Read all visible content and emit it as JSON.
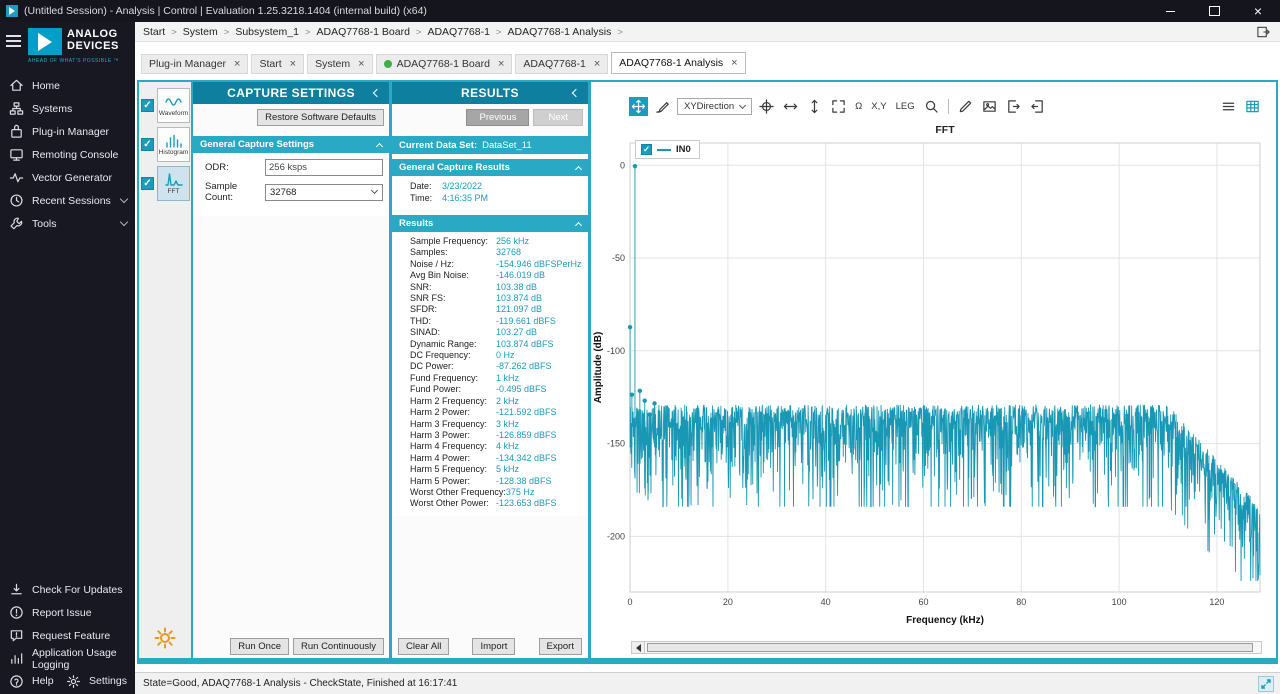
{
  "window": {
    "title": "(Untitled Session) - Analysis | Control | Evaluation 1.25.3218.1404 (internal build) (x64)"
  },
  "sidebar": {
    "logo": {
      "brand_line1": "ANALOG",
      "brand_line2": "DEVICES",
      "tagline": "AHEAD OF WHAT'S POSSIBLE ™"
    },
    "items": [
      {
        "label": "Home",
        "icon": "home-icon"
      },
      {
        "label": "Systems",
        "icon": "systems-icon"
      },
      {
        "label": "Plug-in Manager",
        "icon": "plugin-icon"
      },
      {
        "label": "Remoting Console",
        "icon": "console-icon"
      },
      {
        "label": "Vector Generator",
        "icon": "vector-icon"
      },
      {
        "label": "Recent Sessions",
        "icon": "sessions-icon",
        "chevron": true
      },
      {
        "label": "Tools",
        "icon": "tools-icon",
        "chevron": true
      }
    ],
    "bottom_items": [
      {
        "label": "Check For Updates",
        "icon": "download-icon"
      },
      {
        "label": "Report Issue",
        "icon": "report-issue-icon"
      },
      {
        "label": "Request Feature",
        "icon": "request-feature-icon"
      },
      {
        "label": "Application Usage Logging",
        "icon": "usage-logging-icon"
      }
    ],
    "help_label": "Help",
    "settings_label": "Settings"
  },
  "breadcrumb": {
    "items": [
      "Start",
      "System",
      "Subsystem_1",
      "ADAQ7768-1 Board",
      "ADAQ7768-1",
      "ADAQ7768-1 Analysis"
    ]
  },
  "tabs": [
    {
      "label": "Plug-in Manager"
    },
    {
      "label": "Start"
    },
    {
      "label": "System"
    },
    {
      "label": "ADAQ7768-1 Board",
      "dot": true
    },
    {
      "label": "ADAQ7768-1"
    },
    {
      "label": "ADAQ7768-1 Analysis",
      "active": true
    }
  ],
  "view_strip": {
    "items": [
      {
        "label": "Waveform",
        "checked": true
      },
      {
        "label": "Histogram",
        "checked": true
      },
      {
        "label": "FFT",
        "checked": true,
        "selected": true
      }
    ]
  },
  "capture_settings": {
    "title": "CAPTURE SETTINGS",
    "restore_button": "Restore Software Defaults",
    "section": "General Capture Settings",
    "odr_label": "ODR:",
    "odr_value": "256 ksps",
    "sample_count_label": "Sample Count:",
    "sample_count_value": "32768",
    "run_once": "Run Once",
    "run_continuously": "Run Continuously"
  },
  "results": {
    "title": "RESULTS",
    "previous": "Previous",
    "next": "Next",
    "current_dataset_label": "Current Data Set:",
    "current_dataset_value": "DataSet_11",
    "general_section": "General Capture Results",
    "date_label": "Date:",
    "date_value": "3/23/2022",
    "time_label": "Time:",
    "time_value": "4:16:35 PM",
    "results_section": "Results",
    "rows": [
      {
        "label": "Sample Frequency:",
        "value": "256 kHz"
      },
      {
        "label": "Samples:",
        "value": "32768"
      },
      {
        "label": "Noise / Hz:",
        "value": "-154.946 dBFSPerHz"
      },
      {
        "label": "Avg Bin Noise:",
        "value": "-146.019 dB"
      },
      {
        "label": "SNR:",
        "value": "103.38 dB"
      },
      {
        "label": "SNR FS:",
        "value": "103.874 dB"
      },
      {
        "label": "SFDR:",
        "value": "121.097 dB"
      },
      {
        "label": "THD:",
        "value": "-119.661 dBFS"
      },
      {
        "label": "SINAD:",
        "value": "103.27 dB"
      },
      {
        "label": "Dynamic Range:",
        "value": "103.874 dBFS"
      },
      {
        "label": "DC Frequency:",
        "value": "0 Hz"
      },
      {
        "label": "DC Power:",
        "value": "-87.262 dBFS"
      },
      {
        "label": "Fund Frequency:",
        "value": "1 kHz"
      },
      {
        "label": "Fund Power:",
        "value": "-0.495 dBFS"
      },
      {
        "label": "Harm 2 Frequency:",
        "value": "2 kHz"
      },
      {
        "label": "Harm 2 Power:",
        "value": "-121.592 dBFS"
      },
      {
        "label": "Harm 3 Frequency:",
        "value": "3 kHz"
      },
      {
        "label": "Harm 3 Power:",
        "value": "-126.859 dBFS"
      },
      {
        "label": "Harm 4 Frequency:",
        "value": "4 kHz"
      },
      {
        "label": "Harm 4 Power:",
        "value": "-134.342 dBFS"
      },
      {
        "label": "Harm 5 Frequency:",
        "value": "5 kHz"
      },
      {
        "label": "Harm 5 Power:",
        "value": "-128.38 dBFS"
      },
      {
        "label": "Worst Other Frequency:",
        "value": "375 Hz"
      },
      {
        "label": "Worst Other Power:",
        "value": "-123.653 dBFS"
      }
    ],
    "clear_all": "Clear All",
    "import": "Import",
    "export": "Export"
  },
  "chart": {
    "toolbar": {
      "xy_direction": "XYDirection",
      "omega_label": "Ω",
      "xy_label": "X,Y",
      "leg_label": "LEG",
      "icons": [
        "pan-tool",
        "brush-tool",
        "xy-direction-dropdown",
        "crosshair",
        "horizontal-arrows",
        "vertical-arrows",
        "expand",
        "omega",
        "xy-values",
        "legend-toggle",
        "zoom",
        "annotate-pencil",
        "snapshot-image",
        "export-data",
        "import-data",
        "menu",
        "data-grid"
      ]
    }
  },
  "chart_data": {
    "type": "line",
    "title": "FFT",
    "xlabel": "Frequency (kHz)",
    "ylabel": "Amplitude (dB)",
    "xlim": [
      0,
      128.8
    ],
    "ylim": [
      -230,
      12
    ],
    "x_ticks": [
      0,
      20,
      40,
      60,
      80,
      100,
      120
    ],
    "y_ticks": [
      0,
      -50,
      -100,
      -150,
      -200
    ],
    "grid": true,
    "legend_position": "top-left",
    "series": [
      {
        "name": "IN0",
        "color": "#1898b5",
        "sample_frequency_khz": 256,
        "samples": 32768,
        "noise_floor_db_top": -129,
        "noise_floor_db_median": -140,
        "rolloff_start_khz": 110,
        "rolloff_db_at_max": -184,
        "peaks": [
          {
            "label": "DC",
            "freq_khz": 0,
            "db": -87.262
          },
          {
            "label": "Worst Other",
            "freq_khz": 0.375,
            "db": -123.653
          },
          {
            "label": "Fundamental",
            "freq_khz": 1,
            "db": -0.495
          },
          {
            "label": "Harm 2",
            "freq_khz": 2,
            "db": -121.592
          },
          {
            "label": "Harm 3",
            "freq_khz": 3,
            "db": -126.859
          },
          {
            "label": "Harm 4",
            "freq_khz": 4,
            "db": -134.342
          },
          {
            "label": "Harm 5",
            "freq_khz": 5,
            "db": -128.38
          }
        ]
      }
    ]
  },
  "status_bar": {
    "text": "State=Good, ADAQ7768-1 Analysis - CheckState, Finished at 16:17:41"
  },
  "colors": {
    "accent_teal": "#1b9cba",
    "header_teal": "#0e7f9e",
    "section_teal": "#2aa9c4",
    "sidebar_bg": "#181823",
    "titlebar_bg": "#15151d",
    "trace": "#1898b5",
    "value_text": "#1b9cba",
    "tab_dot_green": "#3fae49",
    "gear_orange": "#e59a23"
  }
}
